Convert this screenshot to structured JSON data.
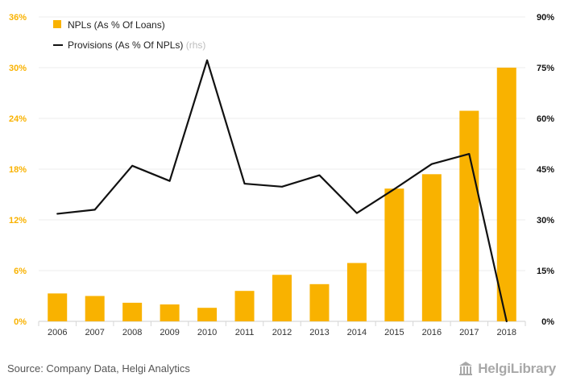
{
  "chart_data": {
    "type": "bar",
    "categories": [
      "2006",
      "2007",
      "2008",
      "2009",
      "2010",
      "2011",
      "2012",
      "2013",
      "2014",
      "2015",
      "2016",
      "2017",
      "2018"
    ],
    "series": [
      {
        "name": "NPLs (As % Of Loans)",
        "type": "bar",
        "axis": "left",
        "color": "#F9B200",
        "values": [
          3.3,
          3.0,
          2.2,
          2.0,
          1.6,
          3.6,
          5.5,
          4.4,
          6.9,
          15.7,
          17.4,
          24.9,
          30.0
        ]
      },
      {
        "name": "Provisions (As % Of NPLs)",
        "type": "line",
        "axis": "right",
        "color": "#111111",
        "values": [
          31.8,
          33.0,
          46.0,
          41.5,
          77.2,
          40.7,
          39.8,
          43.2,
          32.0,
          39.1,
          46.5,
          49.5,
          0.0
        ]
      }
    ],
    "y_left": {
      "ticks": [
        "0%",
        "6%",
        "12%",
        "18%",
        "24%",
        "30%",
        "36%"
      ],
      "min": 0,
      "max": 36,
      "tick_color": "#F9B200"
    },
    "y_right": {
      "ticks": [
        "0%",
        "15%",
        "30%",
        "45%",
        "60%",
        "75%",
        "90%"
      ],
      "min": 0,
      "max": 90
    },
    "grid": true,
    "legend": {
      "placement": "top-left",
      "items": [
        {
          "label": "NPLs (As % Of Loans)",
          "suffix": ""
        },
        {
          "label": "Provisions (As % Of NPLs)",
          "suffix": "(rhs)"
        }
      ]
    }
  },
  "footer": {
    "source": "Source: Company Data, Helgi Analytics",
    "logo": "HelgiLibrary"
  }
}
